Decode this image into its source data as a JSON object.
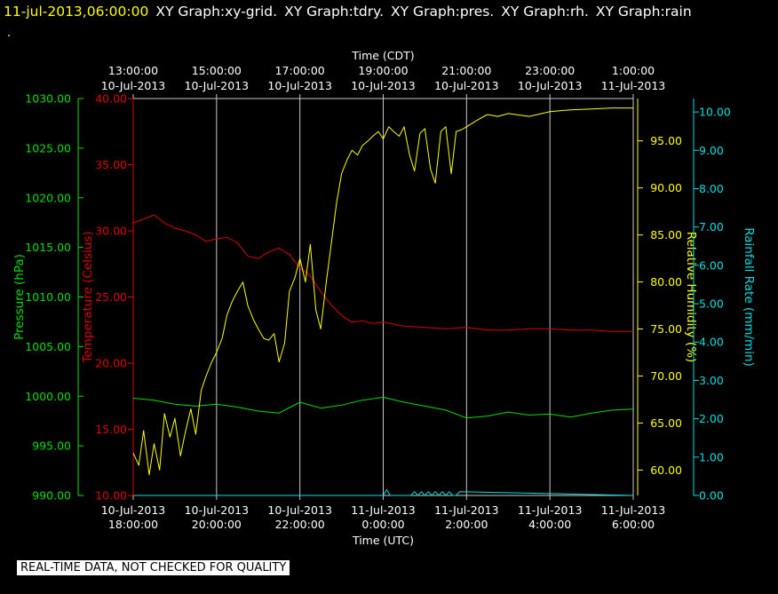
{
  "header": {
    "timestamp": "11-jul-2013,06:00:00",
    "graphs": [
      "XY Graph:xy-grid.",
      "XY Graph:tdry.",
      "XY Graph:pres.",
      "XY Graph:rh.",
      "XY Graph:rain"
    ],
    "dot": "."
  },
  "disclaimer": "REAL-TIME DATA, NOT CHECKED FOR QUALITY",
  "colors": {
    "temperature": "#e00000",
    "pressure": "#00e000",
    "humidity": "#ffff00",
    "rain": "#00e0e0",
    "grid": "#c8c8c8",
    "text": "#ffffff"
  },
  "chart_data": {
    "type": "line",
    "x_top": {
      "label": "Time (CDT)",
      "ticks": [
        {
          "time": "13:00:00",
          "date": "10-Jul-2013"
        },
        {
          "time": "15:00:00",
          "date": "10-Jul-2013"
        },
        {
          "time": "17:00:00",
          "date": "10-Jul-2013"
        },
        {
          "time": "19:00:00",
          "date": "10-Jul-2013"
        },
        {
          "time": "21:00:00",
          "date": "10-Jul-2013"
        },
        {
          "time": "23:00:00",
          "date": "10-Jul-2013"
        },
        {
          "time": "1:00:00",
          "date": "11-Jul-2013"
        }
      ]
    },
    "x_bottom": {
      "label": "Time (UTC)",
      "range": [
        "2013-07-10 18:00",
        "2013-07-11 06:00"
      ],
      "ticks": [
        {
          "date": "10-Jul-2013",
          "time": "18:00:00"
        },
        {
          "date": "10-Jul-2013",
          "time": "20:00:00"
        },
        {
          "date": "10-Jul-2013",
          "time": "22:00:00"
        },
        {
          "date": "11-Jul-2013",
          "time": "0:00:00"
        },
        {
          "date": "11-Jul-2013",
          "time": "2:00:00"
        },
        {
          "date": "11-Jul-2013",
          "time": "4:00:00"
        },
        {
          "date": "11-Jul-2013",
          "time": "6:00:00"
        }
      ]
    },
    "axes": {
      "pressure": {
        "label": "Pressure (hPa)",
        "ticks": [
          "990.00",
          "995.00",
          "1000.00",
          "1005.00",
          "1010.00",
          "1015.00",
          "1020.00",
          "1025.00",
          "1030.00"
        ],
        "range": [
          990,
          1030
        ]
      },
      "temperature": {
        "label": "Temperature (Celsius)",
        "ticks": [
          "10.00",
          "15.00",
          "20.00",
          "25.00",
          "30.00",
          "35.00",
          "40.00"
        ],
        "range": [
          10,
          40
        ]
      },
      "humidity": {
        "label": "Relative Humidity (%)",
        "ticks": [
          "60.00",
          "65.00",
          "70.00",
          "75.00",
          "80.00",
          "85.00",
          "90.00",
          "95.00"
        ],
        "range": [
          57.3,
          99.5
        ]
      },
      "rain": {
        "label": "Rainfall Rate (mm/min)",
        "ticks": [
          "0.00",
          "1.00",
          "2.00",
          "3.00",
          "4.00",
          "5.00",
          "6.00",
          "7.00",
          "8.00",
          "9.00",
          "10.00"
        ],
        "range": [
          0,
          10.35
        ]
      }
    },
    "grid": true,
    "series": [
      {
        "name": "Temperature (Celsius)",
        "axis": "temperature",
        "x": [
          "2013-07-10 18:00",
          "2013-07-10 18:15",
          "2013-07-10 18:30",
          "2013-07-10 18:45",
          "2013-07-10 19:00",
          "2013-07-10 19:15",
          "2013-07-10 19:30",
          "2013-07-10 19:45",
          "2013-07-10 20:00",
          "2013-07-10 20:15",
          "2013-07-10 20:30",
          "2013-07-10 20:45",
          "2013-07-10 21:00",
          "2013-07-10 21:15",
          "2013-07-10 21:30",
          "2013-07-10 21:45",
          "2013-07-10 22:00",
          "2013-07-10 22:15",
          "2013-07-10 22:30",
          "2013-07-10 22:45",
          "2013-07-10 23:00",
          "2013-07-10 23:15",
          "2013-07-10 23:30",
          "2013-07-10 23:45",
          "2013-07-11 00:00",
          "2013-07-11 00:30",
          "2013-07-11 01:00",
          "2013-07-11 01:30",
          "2013-07-11 02:00",
          "2013-07-11 02:30",
          "2013-07-11 03:00",
          "2013-07-11 03:30",
          "2013-07-11 04:00",
          "2013-07-11 04:30",
          "2013-07-11 05:00",
          "2013-07-11 05:30",
          "2013-07-11 06:00"
        ],
        "values": [
          30.6,
          30.9,
          31.2,
          30.6,
          30.2,
          30.0,
          29.7,
          29.2,
          29.4,
          29.5,
          29.1,
          28.1,
          27.9,
          28.4,
          28.7,
          28.2,
          27.2,
          26.6,
          25.4,
          24.4,
          23.6,
          23.1,
          23.2,
          23.0,
          23.1,
          22.8,
          22.7,
          22.6,
          22.7,
          22.5,
          22.5,
          22.6,
          22.6,
          22.5,
          22.5,
          22.4,
          22.4
        ]
      },
      {
        "name": "Pressure (hPa)",
        "axis": "pressure",
        "x": [
          "2013-07-10 18:00",
          "2013-07-10 18:30",
          "2013-07-10 19:00",
          "2013-07-10 19:30",
          "2013-07-10 20:00",
          "2013-07-10 20:30",
          "2013-07-10 21:00",
          "2013-07-10 21:30",
          "2013-07-10 22:00",
          "2013-07-10 22:30",
          "2013-07-10 23:00",
          "2013-07-10 23:30",
          "2013-07-11 00:00",
          "2013-07-11 00:30",
          "2013-07-11 01:00",
          "2013-07-11 01:30",
          "2013-07-11 02:00",
          "2013-07-11 02:30",
          "2013-07-11 03:00",
          "2013-07-11 03:30",
          "2013-07-11 04:00",
          "2013-07-11 04:30",
          "2013-07-11 05:00",
          "2013-07-11 05:30",
          "2013-07-11 06:00"
        ],
        "values": [
          999.8,
          999.6,
          999.2,
          999.0,
          999.2,
          998.9,
          998.5,
          998.3,
          999.4,
          998.8,
          999.1,
          999.6,
          999.9,
          999.4,
          999.0,
          998.6,
          997.8,
          998.0,
          998.4,
          998.1,
          998.2,
          997.9,
          998.3,
          998.6,
          998.7
        ]
      },
      {
        "name": "Relative Humidity (%)",
        "axis": "humidity",
        "x": [
          "2013-07-10 18:00",
          "2013-07-10 18:08",
          "2013-07-10 18:15",
          "2013-07-10 18:23",
          "2013-07-10 18:30",
          "2013-07-10 18:38",
          "2013-07-10 18:45",
          "2013-07-10 18:53",
          "2013-07-10 19:00",
          "2013-07-10 19:08",
          "2013-07-10 19:15",
          "2013-07-10 19:23",
          "2013-07-10 19:30",
          "2013-07-10 19:38",
          "2013-07-10 19:45",
          "2013-07-10 19:53",
          "2013-07-10 20:00",
          "2013-07-10 20:08",
          "2013-07-10 20:15",
          "2013-07-10 20:23",
          "2013-07-10 20:30",
          "2013-07-10 20:38",
          "2013-07-10 20:45",
          "2013-07-10 20:53",
          "2013-07-10 21:00",
          "2013-07-10 21:08",
          "2013-07-10 21:15",
          "2013-07-10 21:23",
          "2013-07-10 21:30",
          "2013-07-10 21:38",
          "2013-07-10 21:45",
          "2013-07-10 21:53",
          "2013-07-10 22:00",
          "2013-07-10 22:08",
          "2013-07-10 22:15",
          "2013-07-10 22:23",
          "2013-07-10 22:30",
          "2013-07-10 22:38",
          "2013-07-10 22:45",
          "2013-07-10 22:53",
          "2013-07-10 23:00",
          "2013-07-10 23:08",
          "2013-07-10 23:15",
          "2013-07-10 23:23",
          "2013-07-10 23:30",
          "2013-07-10 23:38",
          "2013-07-10 23:45",
          "2013-07-10 23:53",
          "2013-07-11 00:00",
          "2013-07-11 00:08",
          "2013-07-11 00:15",
          "2013-07-11 00:23",
          "2013-07-11 00:30",
          "2013-07-11 00:38",
          "2013-07-11 00:45",
          "2013-07-11 00:53",
          "2013-07-11 01:00",
          "2013-07-11 01:08",
          "2013-07-11 01:15",
          "2013-07-11 01:23",
          "2013-07-11 01:30",
          "2013-07-11 01:38",
          "2013-07-11 01:45",
          "2013-07-11 01:53",
          "2013-07-11 02:00",
          "2013-07-11 02:15",
          "2013-07-11 02:30",
          "2013-07-11 02:45",
          "2013-07-11 03:00",
          "2013-07-11 03:30",
          "2013-07-11 04:00",
          "2013-07-11 04:30",
          "2013-07-11 05:00",
          "2013-07-11 05:30",
          "2013-07-11 06:00"
        ],
        "values": [
          61.8,
          60.5,
          64.2,
          59.5,
          62.8,
          60.0,
          66.0,
          63.5,
          65.5,
          61.5,
          64.0,
          66.5,
          63.8,
          68.5,
          70.0,
          71.5,
          72.5,
          74.0,
          76.5,
          78.0,
          79.0,
          80.0,
          77.5,
          76.0,
          75.0,
          74.0,
          73.8,
          74.5,
          71.5,
          73.5,
          79.0,
          80.5,
          82.5,
          80.0,
          84.0,
          77.0,
          75.0,
          80.0,
          84.0,
          88.5,
          91.5,
          93.0,
          94.0,
          93.5,
          94.5,
          95.0,
          95.5,
          96.0,
          95.2,
          96.5,
          96.0,
          95.5,
          96.5,
          93.5,
          91.8,
          95.8,
          96.3,
          92.0,
          90.5,
          96.0,
          96.5,
          91.5,
          96.0,
          96.2,
          96.5,
          97.2,
          97.8,
          97.6,
          97.9,
          97.6,
          98.1,
          98.3,
          98.4,
          98.5,
          98.5
        ]
      },
      {
        "name": "Rainfall Rate (mm/min)",
        "axis": "rain",
        "x": [
          "2013-07-10 18:00",
          "2013-07-11 00:00",
          "2013-07-11 00:05",
          "2013-07-11 00:10",
          "2013-07-11 00:40",
          "2013-07-11 00:45",
          "2013-07-11 00:50",
          "2013-07-11 00:55",
          "2013-07-11 01:00",
          "2013-07-11 01:05",
          "2013-07-11 01:10",
          "2013-07-11 01:15",
          "2013-07-11 01:20",
          "2013-07-11 01:25",
          "2013-07-11 01:30",
          "2013-07-11 01:35",
          "2013-07-11 01:40",
          "2013-07-11 01:45",
          "2013-07-11 01:50",
          "2013-07-11 06:00"
        ],
        "values": [
          0.0,
          0.0,
          0.15,
          0.0,
          0.0,
          0.1,
          0.0,
          0.1,
          0.0,
          0.1,
          0.0,
          0.1,
          0.0,
          0.1,
          0.0,
          0.1,
          0.0,
          0.0,
          0.1,
          0.0
        ]
      }
    ]
  }
}
